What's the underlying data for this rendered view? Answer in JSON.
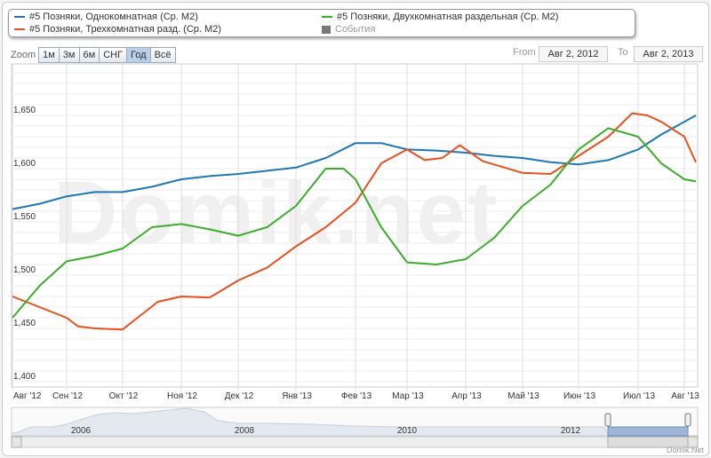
{
  "legend": [
    {
      "label": "#5 Позняки, Однокомнатная (Ср. М2)",
      "color": "#1f77b4"
    },
    {
      "label": "#5 Позняки, Трехкомнатная разд. (Ср. М2)",
      "color": "#e8501e"
    },
    {
      "label": "#5 Позняки, Двухкомнатная раздельная (Ср. М2)",
      "color": "#3cad2a"
    },
    {
      "label": "События",
      "color": "#777777"
    }
  ],
  "zoom": {
    "label": "Zoom",
    "buttons": [
      "1м",
      "3м",
      "6м",
      "СНГ",
      "Год",
      "Всё"
    ],
    "active": "Год"
  },
  "range": {
    "from_label": "From",
    "from": "Авг 2, 2012",
    "to_label": "To",
    "to": "Авг 2, 2013"
  },
  "watermark": "Domik.net",
  "credit": "Domik.Net",
  "navigator": {
    "years": [
      "2006",
      "2008",
      "2010",
      "2012"
    ]
  },
  "chart_data": {
    "type": "line",
    "x_ticks": [
      "Авг '12",
      "Сен '12",
      "Окт '12",
      "Ноя '12",
      "Дек '12",
      "Янв '13",
      "Фев '13",
      "Мар '13",
      "Апр '13",
      "Май '13",
      "Июн '13",
      "Июл '13",
      "Авг '13"
    ],
    "y_ticks": [
      "1,400",
      "1,450",
      "1,500",
      "1,550",
      "1,600",
      "1,650"
    ],
    "ylim": [
      1400,
      1650
    ],
    "xlim": [
      0,
      12.25
    ],
    "series": [
      {
        "name": "#5 Позняки, Однокомнатная (Ср. М2)",
        "color": "#1f77b4",
        "points": [
          [
            0,
            1562
          ],
          [
            0.5,
            1567
          ],
          [
            1,
            1574
          ],
          [
            1.5,
            1578
          ],
          [
            2,
            1578
          ],
          [
            2.5,
            1583
          ],
          [
            3,
            1590
          ],
          [
            3.5,
            1593
          ],
          [
            4,
            1595
          ],
          [
            4.5,
            1598
          ],
          [
            5,
            1601
          ],
          [
            5.5,
            1610
          ],
          [
            6,
            1624
          ],
          [
            6.5,
            1624
          ],
          [
            7,
            1618
          ],
          [
            7.5,
            1617
          ],
          [
            8,
            1615
          ],
          [
            8.5,
            1612
          ],
          [
            9,
            1610
          ],
          [
            9.5,
            1606
          ],
          [
            10,
            1604
          ],
          [
            10.5,
            1608
          ],
          [
            11,
            1618
          ],
          [
            11.5,
            1632
          ],
          [
            12.25,
            1650
          ]
        ]
      },
      {
        "name": "#5 Позняки, Трехкомнатная разд. (Ср. М2)",
        "color": "#e8501e",
        "points": [
          [
            0,
            1480
          ],
          [
            0.5,
            1470
          ],
          [
            1,
            1460
          ],
          [
            1.2,
            1452
          ],
          [
            1.5,
            1450
          ],
          [
            2,
            1449
          ],
          [
            2.3,
            1462
          ],
          [
            2.6,
            1475
          ],
          [
            3,
            1480
          ],
          [
            3.5,
            1479
          ],
          [
            4,
            1495
          ],
          [
            4.5,
            1507
          ],
          [
            5,
            1527
          ],
          [
            5.5,
            1545
          ],
          [
            6,
            1568
          ],
          [
            6.5,
            1605
          ],
          [
            7,
            1618
          ],
          [
            7.3,
            1608
          ],
          [
            7.6,
            1610
          ],
          [
            7.9,
            1622
          ],
          [
            8.3,
            1607
          ],
          [
            9,
            1596
          ],
          [
            9.5,
            1595
          ],
          [
            10,
            1612
          ],
          [
            10.5,
            1630
          ],
          [
            10.9,
            1652
          ],
          [
            11.2,
            1650
          ],
          [
            11.5,
            1644
          ],
          [
            12,
            1630
          ],
          [
            12.25,
            1606
          ]
        ]
      },
      {
        "name": "#5 Позняки, Двухкомнатная раздельная (Ср. М2)",
        "color": "#3cad2a",
        "points": [
          [
            0,
            1460
          ],
          [
            0.5,
            1490
          ],
          [
            1,
            1513
          ],
          [
            1.5,
            1518
          ],
          [
            2,
            1525
          ],
          [
            2.5,
            1545
          ],
          [
            3,
            1548
          ],
          [
            3.5,
            1543
          ],
          [
            4,
            1537
          ],
          [
            4.5,
            1545
          ],
          [
            5,
            1565
          ],
          [
            5.5,
            1600
          ],
          [
            5.8,
            1600
          ],
          [
            6,
            1590
          ],
          [
            6.5,
            1545
          ],
          [
            7,
            1512
          ],
          [
            7.5,
            1510
          ],
          [
            8,
            1515
          ],
          [
            8.5,
            1535
          ],
          [
            9,
            1565
          ],
          [
            9.5,
            1585
          ],
          [
            10,
            1618
          ],
          [
            10.5,
            1638
          ],
          [
            11,
            1630
          ],
          [
            11.5,
            1605
          ],
          [
            12,
            1590
          ],
          [
            12.25,
            1588
          ]
        ]
      }
    ]
  }
}
